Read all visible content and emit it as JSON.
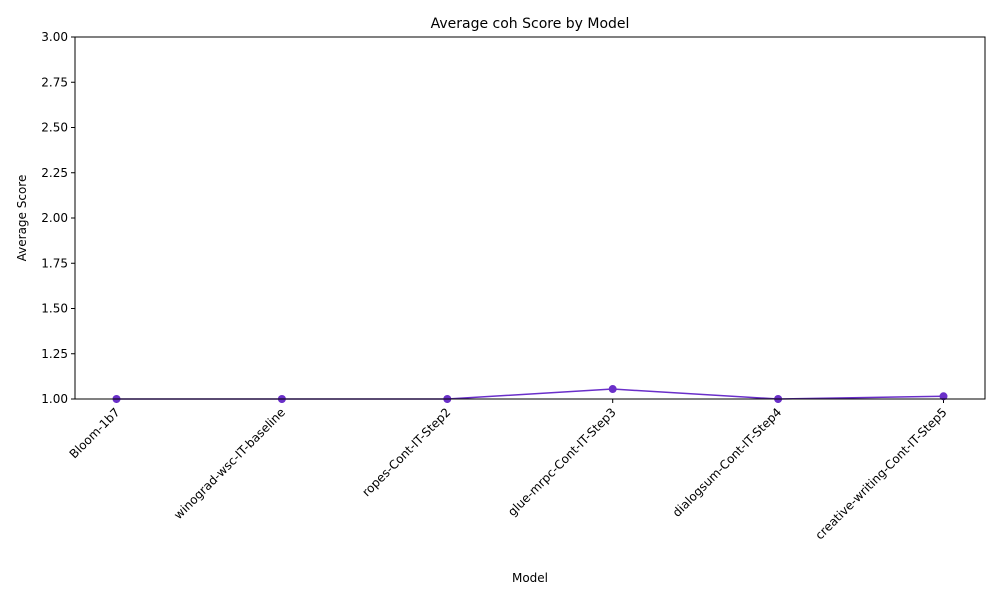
{
  "chart_data": {
    "type": "line",
    "title": "Average coh Score by Model",
    "xlabel": "Model",
    "ylabel": "Average Score",
    "categories": [
      "Bloom-1b7",
      "winograd-wsc-IT-baseline",
      "ropes-Cont-IT-Step2",
      "glue-mrpc-Cont-IT-Step3",
      "dialogsum-Cont-IT-Step4",
      "creative-writing-Cont-IT-Step5"
    ],
    "series": [
      {
        "values": [
          1.0,
          1.0,
          1.0,
          1.055,
          1.0,
          1.015
        ],
        "color": "#6a2fc9"
      }
    ],
    "ylim": [
      1.0,
      3.0
    ],
    "yticks": [
      "1.00",
      "1.25",
      "1.50",
      "1.75",
      "2.00",
      "2.25",
      "2.50",
      "2.75",
      "3.00"
    ],
    "grid": false,
    "legend": "none"
  }
}
